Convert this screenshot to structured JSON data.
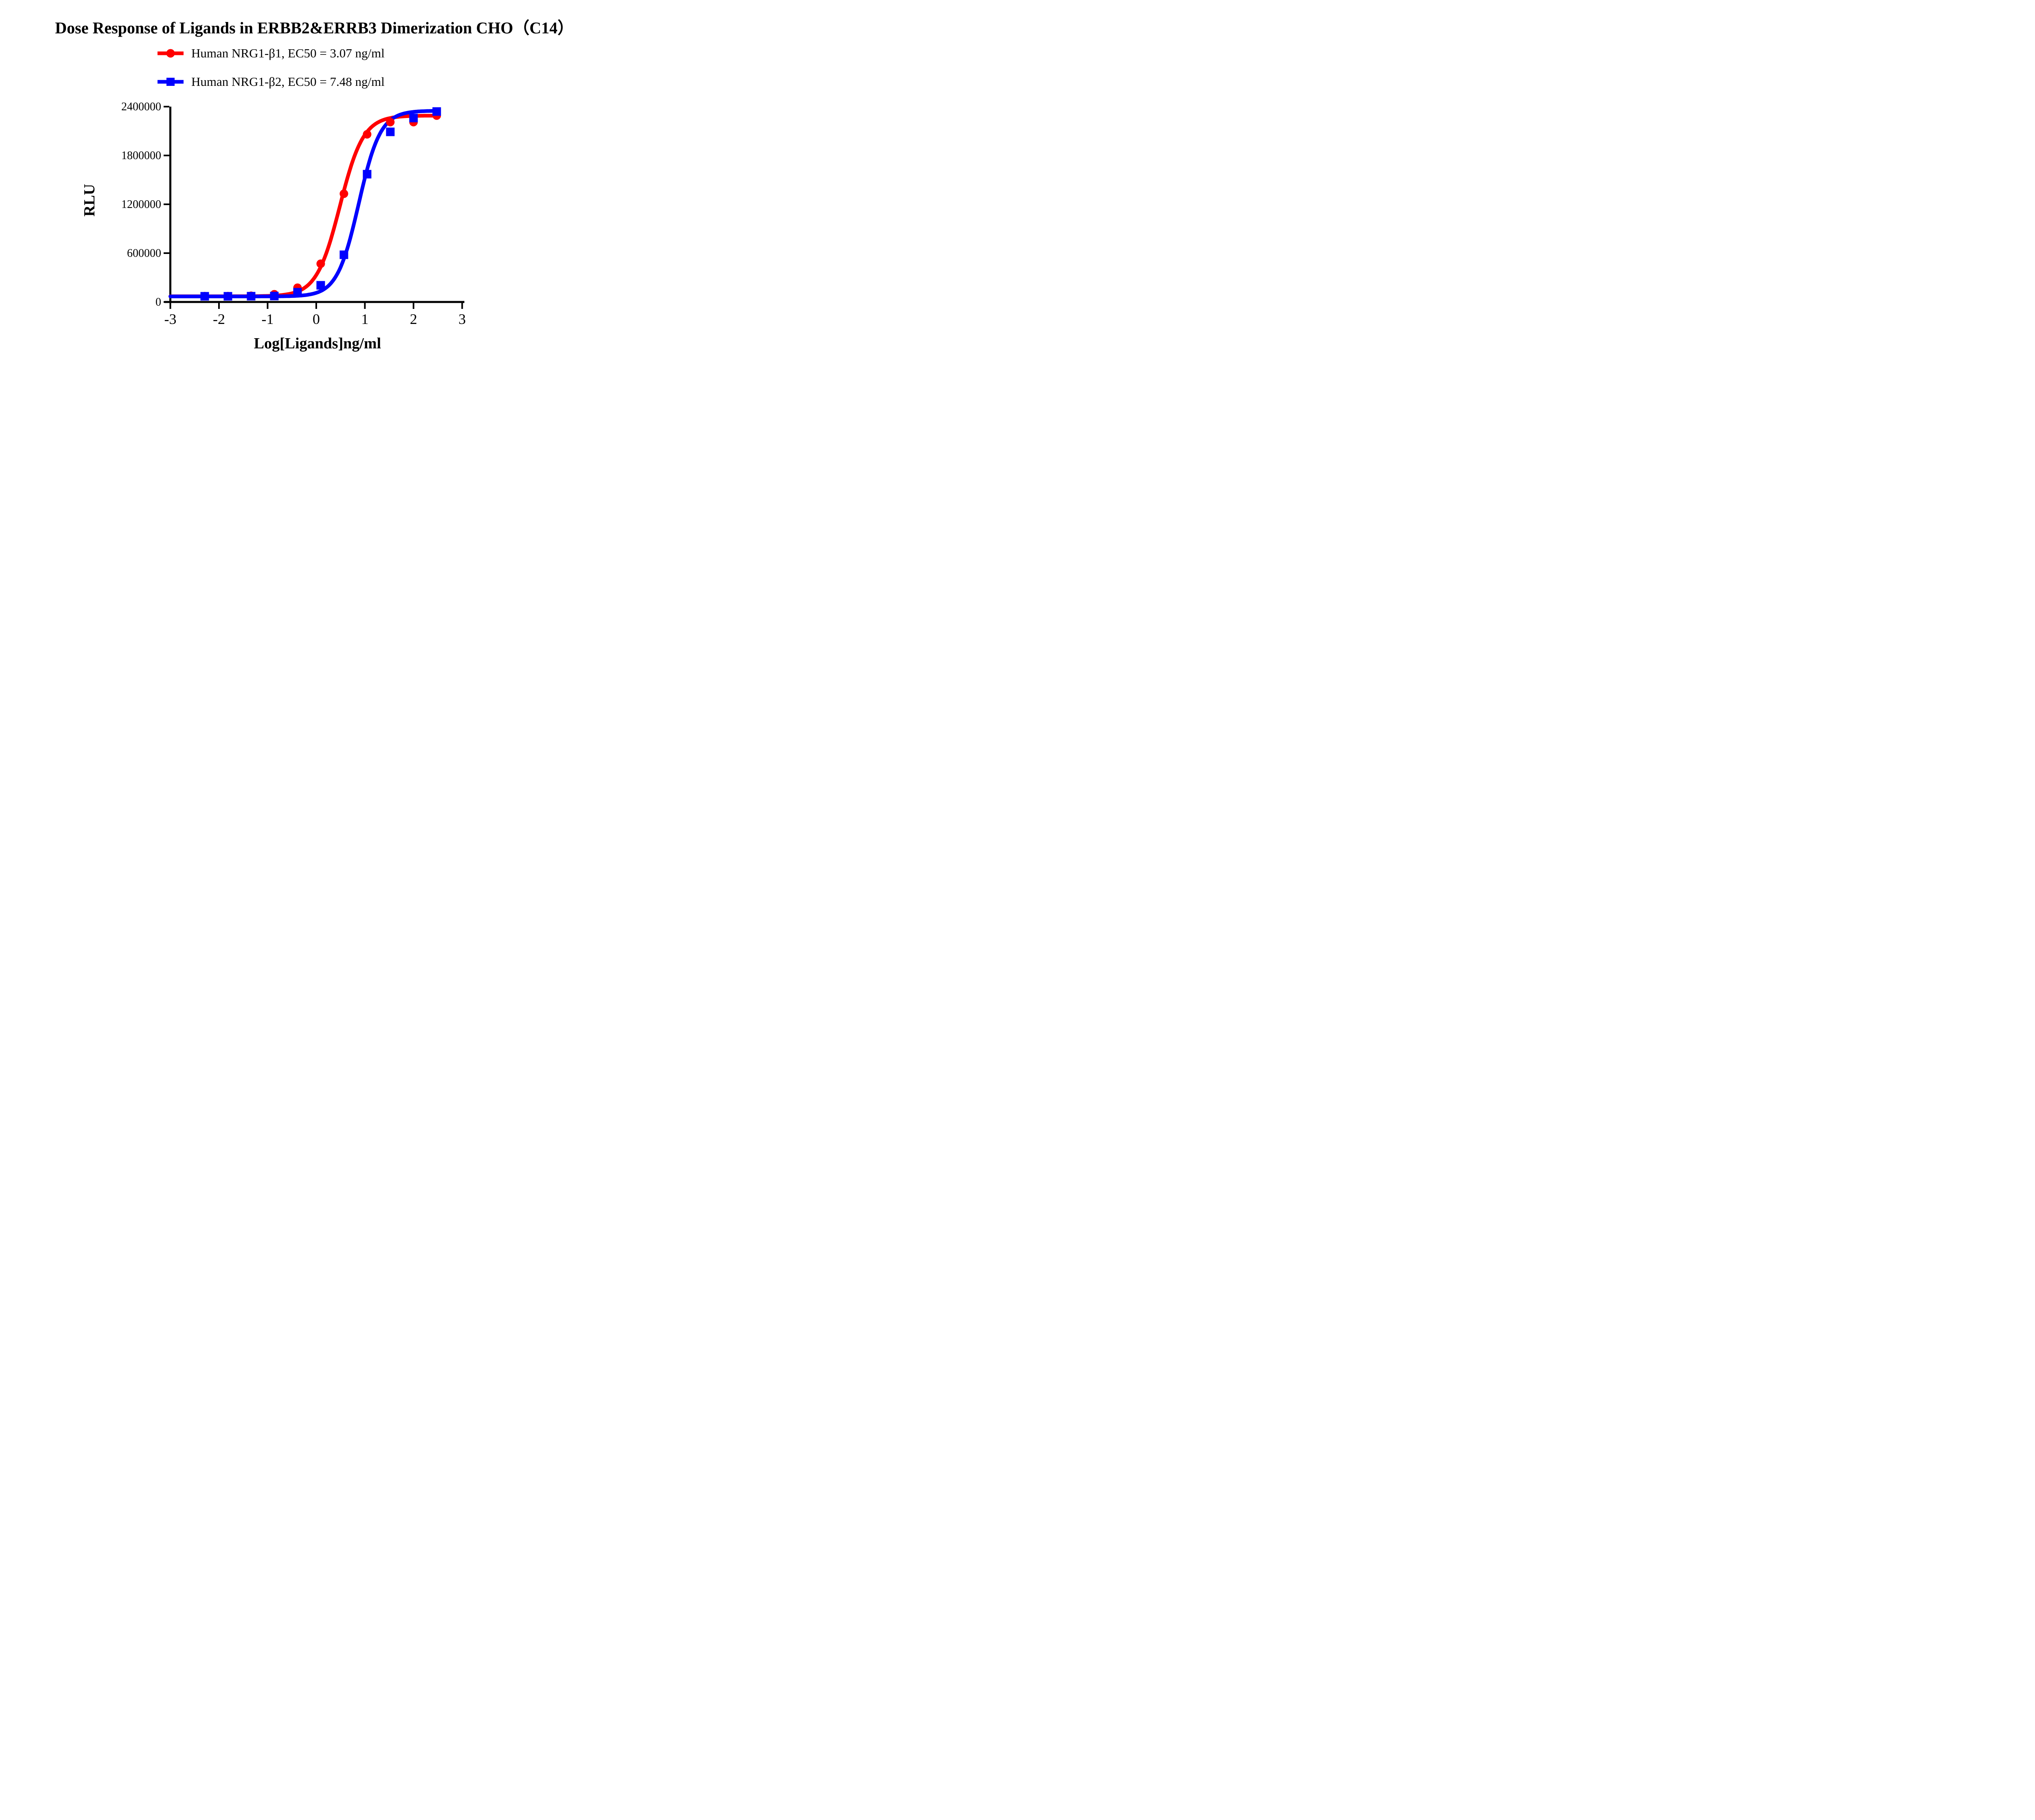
{
  "title": "Dose Response of Ligands in ERBB2&ERRB3 Dimerization CHO（C14）",
  "legend": [
    {
      "label": "Human NRG1-β1, EC50 = 3.07 ng/ml",
      "color": "#FF0000",
      "marker": "circle"
    },
    {
      "label": "Human NRG1-β2, EC50 = 7.48 ng/ml",
      "color": "#0000FE",
      "marker": "square"
    }
  ],
  "chart_data": {
    "type": "line",
    "title": "Dose Response of Ligands in ERBB2&ERRB3 Dimerization CHO（C14）",
    "xlabel": "Log[Ligands]ng/ml",
    "ylabel": "RLU",
    "xlim": [
      -3,
      3
    ],
    "ylim": [
      0,
      2400000
    ],
    "grid": false,
    "legend_position": "top",
    "x_tick_labels": [
      "-3",
      "-2",
      "-1",
      "0",
      "1",
      "2",
      "3"
    ],
    "x_tick_values": [
      -3,
      -2,
      -1,
      0,
      1,
      2,
      3
    ],
    "y_tick_labels": [
      "0",
      "600000",
      "1200000",
      "1800000",
      "2400000"
    ],
    "y_tick_values": [
      0,
      600000,
      1200000,
      1800000,
      2400000
    ],
    "x": [
      -2.293,
      -1.816,
      -1.339,
      -0.862,
      -0.385,
      0.092,
      0.569,
      1.046,
      1.523,
      2.0,
      2.477
    ],
    "series": [
      {
        "name": "Human NRG1-β1",
        "ec50_ng_ml": 3.07,
        "color": "#FF0000",
        "marker": "circle",
        "values": [
          72000,
          72000,
          76000,
          95000,
          175000,
          470000,
          1330000,
          2060000,
          2210000,
          2210000,
          2290000
        ],
        "fit_4pl": {
          "bottom": 70000,
          "top": 2290000,
          "logEC50": 0.487,
          "hill": 1.8
        }
      },
      {
        "name": "Human NRG1-β2",
        "ec50_ng_ml": 7.48,
        "color": "#0000FE",
        "marker": "square",
        "values": [
          70000,
          70000,
          71000,
          73000,
          120000,
          205000,
          580000,
          1570000,
          2090000,
          2260000,
          2340000
        ],
        "fit_4pl": {
          "bottom": 68000,
          "top": 2350000,
          "logEC50": 0.874,
          "hill": 1.95
        }
      }
    ],
    "curve_x_range": [
      -3,
      2.477
    ]
  }
}
